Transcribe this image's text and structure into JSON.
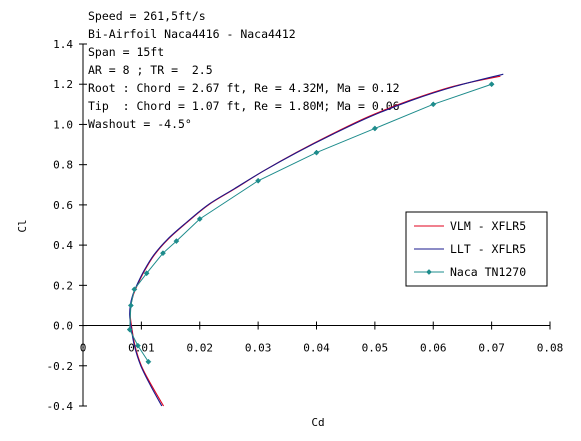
{
  "chart_data": {
    "type": "line",
    "title": "",
    "xlabel": "Cd",
    "ylabel": "Cl",
    "xlim": [
      0,
      0.08
    ],
    "ylim": [
      -0.4,
      1.4
    ],
    "xticks": [
      0,
      0.01,
      0.02,
      0.03,
      0.04,
      0.05,
      0.06,
      0.07,
      0.08
    ],
    "xtick_labels": [
      "0",
      "0.01",
      "0.02",
      "0.03",
      "0.04",
      "0.05",
      "0.06",
      "0.07",
      "0.08"
    ],
    "yticks": [
      -0.4,
      -0.2,
      0,
      0.2,
      0.4,
      0.6,
      0.8,
      1.0,
      1.2,
      1.4
    ],
    "ytick_labels": [
      "-0.4",
      "-0.2",
      "0.0",
      "0.2",
      "0.4",
      "0.6",
      "0.8",
      "1.0",
      "1.2",
      "1.4"
    ],
    "grid": false,
    "legend_position": "right",
    "annotations": [
      "Speed = 261,5ft/s",
      "Bi-Airfoil Naca4416 - Naca4412",
      "Span = 15ft",
      "AR = 8 ; TR =  2.5",
      "Root : Chord = 2.67 ft, Re = 4.32M, Ma = 0.12",
      "Tip  : Chord = 1.07 ft, Re = 1.80M; Ma = 0.06",
      "Washout = -4.5°"
    ],
    "series": [
      {
        "name": "VLM - XFLR5",
        "color": "#e0001c",
        "marker": "none",
        "x": [
          0.0138,
          0.0118,
          0.01,
          0.0089,
          0.0083,
          0.0081,
          0.0082,
          0.0086,
          0.0093,
          0.0105,
          0.0122,
          0.0146,
          0.0177,
          0.0215,
          0.026,
          0.031,
          0.0365,
          0.0425,
          0.049,
          0.056,
          0.0635,
          0.0715
        ],
        "y": [
          -0.4,
          -0.3,
          -0.2,
          -0.1,
          0.0,
          0.05,
          0.1,
          0.15,
          0.2,
          0.27,
          0.35,
          0.43,
          0.51,
          0.6,
          0.68,
          0.77,
          0.86,
          0.95,
          1.04,
          1.12,
          1.19,
          1.24
        ]
      },
      {
        "name": "LLT - XFLR5",
        "color": "#1a1a8c",
        "marker": "none",
        "x": [
          0.0135,
          0.0116,
          0.0099,
          0.0088,
          0.0082,
          0.008,
          0.0081,
          0.0085,
          0.0092,
          0.0104,
          0.0121,
          0.0145,
          0.0176,
          0.0214,
          0.0259,
          0.031,
          0.0366,
          0.0427,
          0.0493,
          0.0563,
          0.0638,
          0.072
        ],
        "y": [
          -0.4,
          -0.3,
          -0.2,
          -0.1,
          0.0,
          0.05,
          0.1,
          0.15,
          0.2,
          0.27,
          0.35,
          0.43,
          0.51,
          0.6,
          0.68,
          0.77,
          0.86,
          0.95,
          1.04,
          1.12,
          1.19,
          1.25
        ]
      },
      {
        "name": "Naca TN1270",
        "color": "#1e8c8c",
        "marker": "diamond",
        "x": [
          0.0112,
          0.0094,
          0.008,
          0.0082,
          0.0088,
          0.0109,
          0.0137,
          0.016,
          0.02,
          0.03,
          0.04,
          0.05,
          0.06,
          0.07
        ],
        "y": [
          -0.18,
          -0.1,
          -0.02,
          0.1,
          0.18,
          0.26,
          0.36,
          0.42,
          0.53,
          0.72,
          0.86,
          0.98,
          1.1,
          1.2
        ]
      }
    ]
  }
}
